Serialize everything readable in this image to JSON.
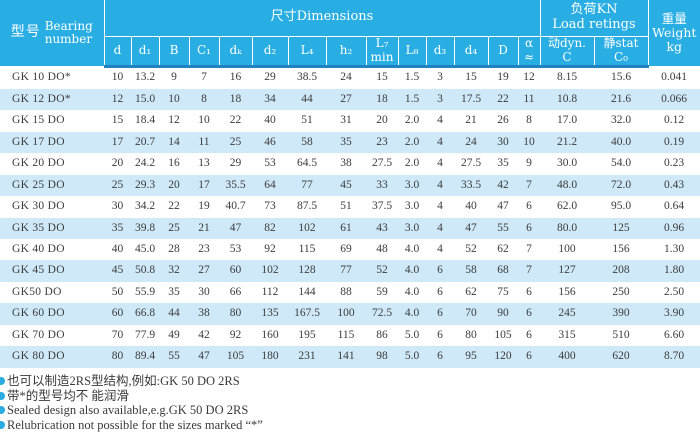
{
  "header": {
    "model_cn": "型号",
    "model_en": "Bearing\nnumber",
    "dimensions_group": "尺寸Dimensions",
    "load_group": "负荷KN\nLoad retings",
    "weight": "重量\nWeight\nkg",
    "dim_cols": [
      "d",
      "d₁",
      "B",
      "C₁",
      "dₖ",
      "d₂",
      "L₄",
      "h₂",
      "L₇\nmin",
      "L₈",
      "d₃",
      "d₄",
      "D",
      "α\n≈"
    ],
    "load_cols": [
      "动dyn.\nC",
      "静stat\nC₀"
    ]
  },
  "rows": [
    {
      "model": "GK 10 DO*",
      "values": [
        "10",
        "13.2",
        "9",
        "7",
        "16",
        "29",
        "38.5",
        "24",
        "15",
        "1.5",
        "3",
        "15",
        "19",
        "12",
        "8.15",
        "15.6",
        "0.041"
      ]
    },
    {
      "model": "GK 12 DO*",
      "values": [
        "12",
        "15.0",
        "10",
        "8",
        "18",
        "34",
        "44",
        "27",
        "18",
        "1.5",
        "3",
        "17.5",
        "22",
        "11",
        "10.8",
        "21.6",
        "0.066"
      ]
    },
    {
      "model": "GK 15 DO",
      "values": [
        "15",
        "18.4",
        "12",
        "10",
        "22",
        "40",
        "51",
        "31",
        "20",
        "2.0",
        "4",
        "21",
        "26",
        "8",
        "17.0",
        "32.0",
        "0.12"
      ]
    },
    {
      "model": "GK 17 DO",
      "values": [
        "17",
        "20.7",
        "14",
        "11",
        "25",
        "46",
        "58",
        "35",
        "23",
        "2.0",
        "4",
        "24",
        "30",
        "10",
        "21.2",
        "40.0",
        "0.19"
      ]
    },
    {
      "model": "GK 20 DO",
      "values": [
        "20",
        "24.2",
        "16",
        "13",
        "29",
        "53",
        "64.5",
        "38",
        "27.5",
        "2.0",
        "4",
        "27.5",
        "35",
        "9",
        "30.0",
        "54.0",
        "0.23"
      ]
    },
    {
      "model": "GK 25 DO",
      "values": [
        "25",
        "29.3",
        "20",
        "17",
        "35.5",
        "64",
        "77",
        "45",
        "33",
        "3.0",
        "4",
        "33.5",
        "42",
        "7",
        "48.0",
        "72.0",
        "0.43"
      ]
    },
    {
      "model": "GK 30 DO",
      "values": [
        "30",
        "34.2",
        "22",
        "19",
        "40.7",
        "73",
        "87.5",
        "51",
        "37.5",
        "3.0",
        "4",
        "40",
        "47",
        "6",
        "62.0",
        "95.0",
        "0.64"
      ]
    },
    {
      "model": "GK 35 DO",
      "values": [
        "35",
        "39.8",
        "25",
        "21",
        "47",
        "82",
        "102",
        "61",
        "43",
        "3.0",
        "4",
        "47",
        "55",
        "6",
        "80.0",
        "125",
        "0.96"
      ]
    },
    {
      "model": "GK 40 DO",
      "values": [
        "40",
        "45.0",
        "28",
        "23",
        "53",
        "92",
        "115",
        "69",
        "48",
        "4.0",
        "4",
        "52",
        "62",
        "7",
        "100",
        "156",
        "1.30"
      ]
    },
    {
      "model": "GK 45 DO",
      "values": [
        "45",
        "50.8",
        "32",
        "27",
        "60",
        "102",
        "128",
        "77",
        "52",
        "4.0",
        "6",
        "58",
        "68",
        "7",
        "127",
        "208",
        "1.80"
      ]
    },
    {
      "model": "GK50 DO",
      "values": [
        "50",
        "55.9",
        "35",
        "30",
        "66",
        "112",
        "144",
        "88",
        "59",
        "4.0",
        "6",
        "62",
        "75",
        "6",
        "156",
        "250",
        "2.50"
      ]
    },
    {
      "model": "GK 60 DO",
      "values": [
        "60",
        "66.8",
        "44",
        "38",
        "80",
        "135",
        "167.5",
        "100",
        "72.5",
        "4.0",
        "6",
        "70",
        "90",
        "6",
        "245",
        "390",
        "3.90"
      ]
    },
    {
      "model": "GK 70 DO",
      "values": [
        "70",
        "77.9",
        "49",
        "42",
        "92",
        "160",
        "195",
        "115",
        "86",
        "5.0",
        "6",
        "80",
        "105",
        "6",
        "315",
        "510",
        "6.60"
      ]
    },
    {
      "model": "GK 80 DO",
      "values": [
        "80",
        "89.4",
        "55",
        "47",
        "105",
        "180",
        "231",
        "141",
        "98",
        "5.0",
        "6",
        "95",
        "120",
        "6",
        "400",
        "620",
        "8.70"
      ]
    }
  ],
  "notes": [
    "也可以制造2RS型结构,例如:GK 50 DO  2RS",
    "带*的型号均不 能润滑",
    "Sealed design also available,e.g.GK 50 DO  2RS",
    "Relubrication not possible for the sizes marked “*”"
  ],
  "colors": {
    "header_cyan": "#29aee4",
    "separator_blue": "#2182c3",
    "stripe_blue": "#cfe9f8",
    "bullet_cyan": "#29abe2",
    "text": "#3c3c3c"
  }
}
